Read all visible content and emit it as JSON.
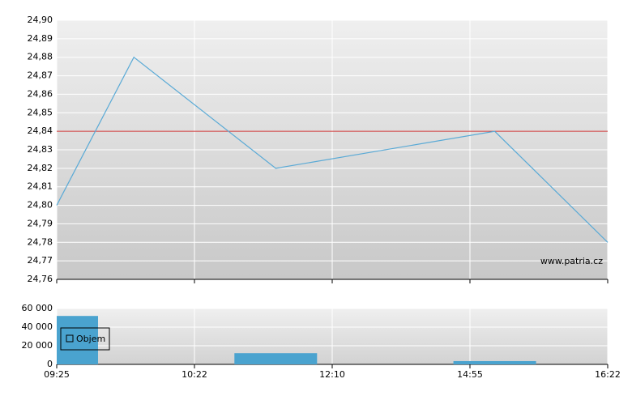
{
  "chart_data": [
    {
      "type": "line",
      "x": [
        0,
        0.56,
        1.59,
        3.18,
        4
      ],
      "values": [
        24.8,
        24.88,
        24.82,
        24.84,
        24.78
      ],
      "color": "#5aaad6",
      "xlim": [
        0,
        4
      ],
      "xticks": [
        0,
        1,
        2,
        3,
        4
      ],
      "ylim": [
        24.76,
        24.9
      ],
      "yticks": [
        {
          "value": 24.76,
          "label": "24,76"
        },
        {
          "value": 24.77,
          "label": "24,77"
        },
        {
          "value": 24.78,
          "label": "24,78"
        },
        {
          "value": 24.79,
          "label": "24,79"
        },
        {
          "value": 24.8,
          "label": "24,80"
        },
        {
          "value": 24.81,
          "label": "24,81"
        },
        {
          "value": 24.82,
          "label": "24,82"
        },
        {
          "value": 24.83,
          "label": "24,83"
        },
        {
          "value": 24.84,
          "label": "24,84"
        },
        {
          "value": 24.85,
          "label": "24,85"
        },
        {
          "value": 24.86,
          "label": "24,86"
        },
        {
          "value": 24.87,
          "label": "24,87"
        },
        {
          "value": 24.88,
          "label": "24,88"
        },
        {
          "value": 24.89,
          "label": "24,89"
        },
        {
          "value": 24.9,
          "label": "24,90"
        }
      ],
      "reference_line": {
        "value": 24.84,
        "color": "#cc3333"
      },
      "watermark": "www.patria.cz",
      "grid": true
    },
    {
      "type": "bar",
      "x": [
        0,
        1.59,
        3.18
      ],
      "series": [
        {
          "name": "Objem",
          "color": "#4aa3cf",
          "values": [
            52000,
            12000,
            3500
          ]
        }
      ],
      "xlim": [
        0,
        4
      ],
      "xticks": [
        {
          "value": 0,
          "label": "09:25"
        },
        {
          "value": 1,
          "label": "10:22"
        },
        {
          "value": 2,
          "label": "12:10"
        },
        {
          "value": 3,
          "label": "14:55"
        },
        {
          "value": 4,
          "label": "16:22"
        }
      ],
      "ylim": [
        0,
        60000
      ],
      "yticks": [
        0,
        {
          "value": 20000,
          "label": "20 000"
        },
        {
          "value": 40000,
          "label": "40 000"
        },
        {
          "value": 60000,
          "label": "60 000"
        }
      ],
      "grid": true
    }
  ]
}
